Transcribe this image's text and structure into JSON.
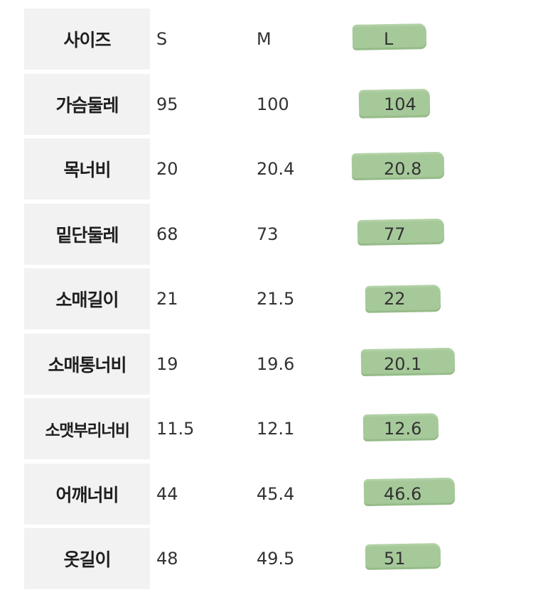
{
  "table": {
    "header": {
      "label": "사이즈",
      "s": "S",
      "m": "M",
      "l": "L"
    },
    "rows": [
      {
        "label": "가슴둘레",
        "s": "95",
        "m": "100",
        "l": "104"
      },
      {
        "label": "목너비",
        "s": "20",
        "m": "20.4",
        "l": "20.8"
      },
      {
        "label": "밑단둘레",
        "s": "68",
        "m": "73",
        "l": "77"
      },
      {
        "label": "소매길이",
        "s": "21",
        "m": "21.5",
        "l": "22"
      },
      {
        "label": "소매통너비",
        "s": "19",
        "m": "19.6",
        "l": "20.1"
      },
      {
        "label": "소맷부리너비",
        "s": "11.5",
        "m": "12.1",
        "l": "12.6"
      },
      {
        "label": "어깨너비",
        "s": "44",
        "m": "45.4",
        "l": "46.6"
      },
      {
        "label": "옷길이",
        "s": "48",
        "m": "49.5",
        "l": "51"
      }
    ],
    "highlight_color": "#a6c99a",
    "label_background": "#f2f2f2"
  }
}
